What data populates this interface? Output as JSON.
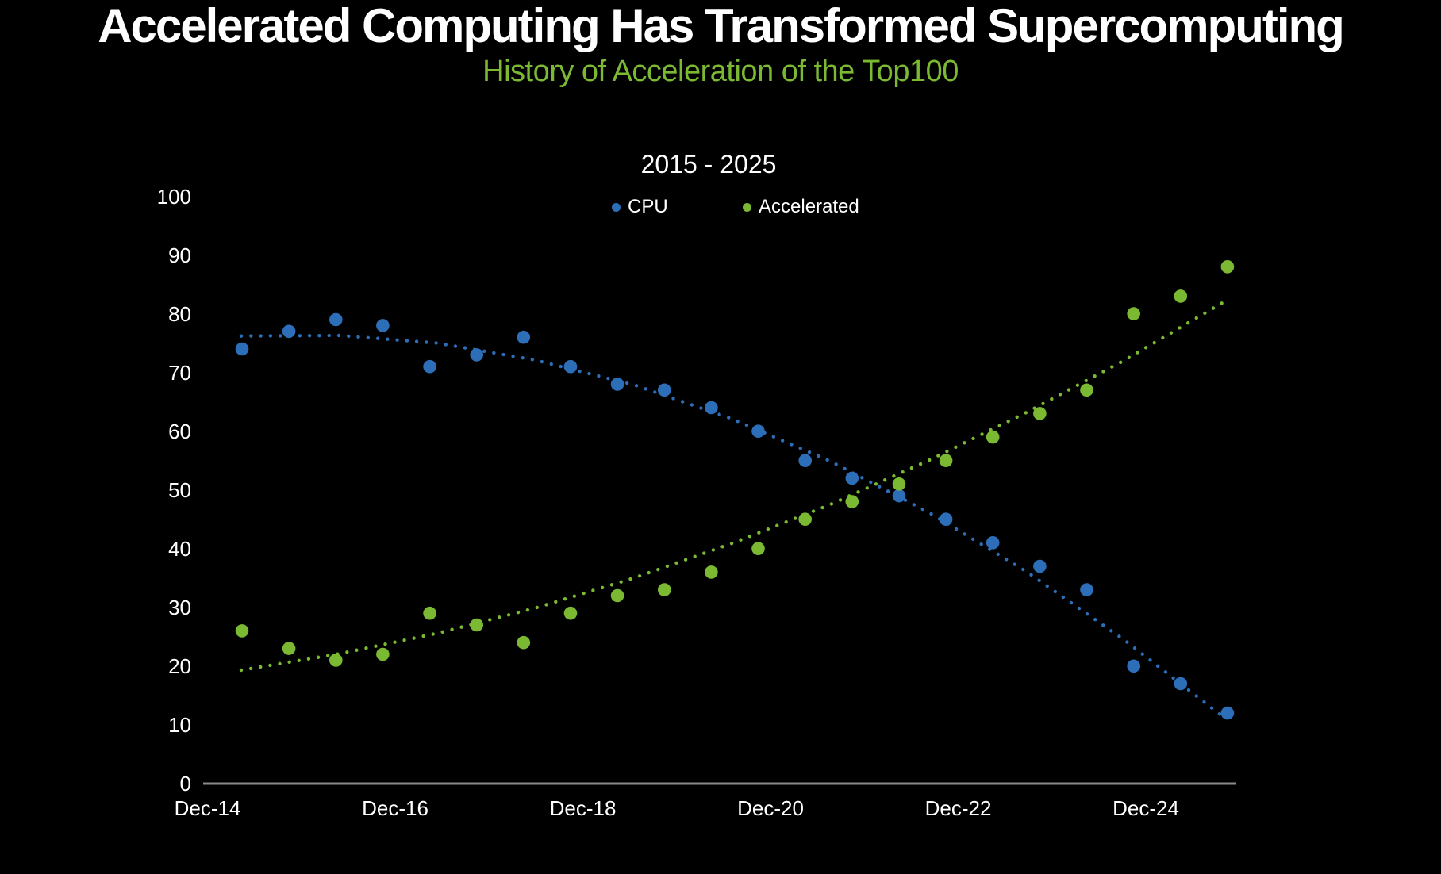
{
  "header": {
    "title": "Accelerated Computing Has Transformed Supercomputing",
    "subtitle": "History of Acceleration of the Top100",
    "title_color": "#FFFFFF",
    "subtitle_color": "#7CB932"
  },
  "chart_data": {
    "type": "scatter",
    "title": "2015 - 2025",
    "background_color": "#000000",
    "grid": false,
    "legend_position": "top-center",
    "xlabel": "",
    "ylabel": "",
    "ylim": [
      0,
      100
    ],
    "y_ticks": [
      0,
      10,
      20,
      30,
      40,
      50,
      60,
      70,
      80,
      90,
      100
    ],
    "x_tick_labels": [
      "Dec-14",
      "Dec-16",
      "Dec-18",
      "Dec-20",
      "Dec-22",
      "Dec-24"
    ],
    "axis_line_color": "#8A8A8A",
    "categories": [
      "Jun-15",
      "Nov-15",
      "Jun-16",
      "Nov-16",
      "Jun-17",
      "Nov-17",
      "Jun-18",
      "Nov-18",
      "Jun-19",
      "Nov-19",
      "Jun-20",
      "Nov-20",
      "Jun-21",
      "Nov-21",
      "Jun-22",
      "Nov-22",
      "Jun-23",
      "Nov-23",
      "Jun-24",
      "Nov-24",
      "Jun-25",
      "Nov-25"
    ],
    "series": [
      {
        "name": "CPU",
        "color": "#2D6EB9",
        "values": [
          74,
          77,
          79,
          78,
          71,
          73,
          76,
          71,
          68,
          67,
          64,
          60,
          55,
          52,
          49,
          45,
          41,
          37,
          33,
          20,
          17,
          12
        ],
        "trendline_values": [
          76.2,
          76.3,
          75.0,
          72.1,
          67.9,
          62.1,
          54.9,
          46.2,
          36.1,
          24.4,
          11.4
        ]
      },
      {
        "name": "Accelerated",
        "color": "#7CB932",
        "values": [
          26,
          23,
          21,
          22,
          29,
          27,
          24,
          29,
          32,
          33,
          36,
          40,
          45,
          48,
          51,
          55,
          59,
          63,
          67,
          80,
          83,
          88
        ],
        "trendline_values": [
          19.3,
          22.1,
          25.6,
          29.9,
          35.0,
          40.9,
          47.5,
          55.0,
          63.2,
          72.1,
          81.9
        ]
      }
    ]
  }
}
